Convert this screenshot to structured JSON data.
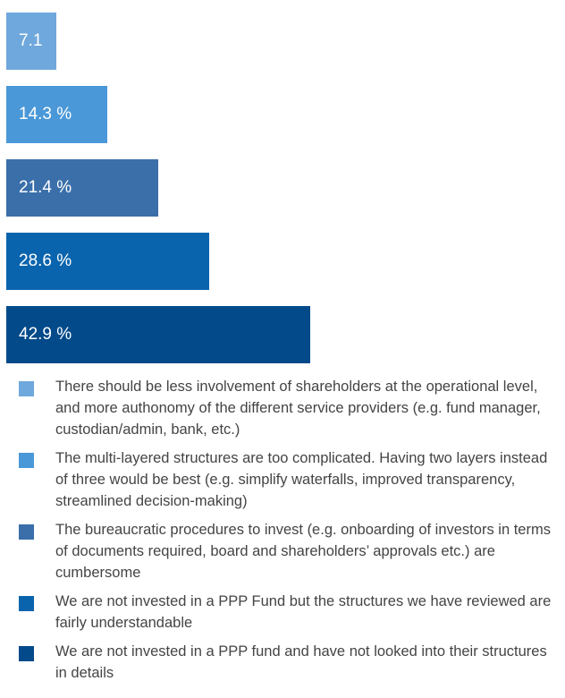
{
  "chart_data": {
    "type": "bar",
    "orientation": "horizontal",
    "unit": "%",
    "xlim": [
      0,
      78
    ],
    "grid": false,
    "legend": "bottom",
    "series": [
      {
        "value": 7.1,
        "label": "7.1 %",
        "color": "#6fa8dc",
        "legend": "There should be less involvement of shareholders at the operational level, and more authonomy of the different service providers (e.g. fund manager, custodian/admin, bank, etc.)"
      },
      {
        "value": 14.3,
        "label": "14.3 %",
        "color": "#4a98d8",
        "legend": "The multi-layered structures are too complicated. Having two layers instead of three would be best (e.g. simplify waterfalls, improved transparency, streamlined decision-making)"
      },
      {
        "value": 21.4,
        "label": "21.4 %",
        "color": "#3a6faa",
        "legend": "The bureaucratic procedures to invest (e.g. onboarding of investors in terms of documents required, board and shareholders’ approvals etc.) are cumbersome"
      },
      {
        "value": 28.6,
        "label": "28.6 %",
        "color": "#0a64ad",
        "legend": "We are not invested in a PPP Fund but the structures we have reviewed are fairly understandable"
      },
      {
        "value": 42.9,
        "label": "42.9 %",
        "color": "#024a8a",
        "legend": "We are not invested in a PPP fund and have not looked into their structures in details"
      }
    ]
  }
}
